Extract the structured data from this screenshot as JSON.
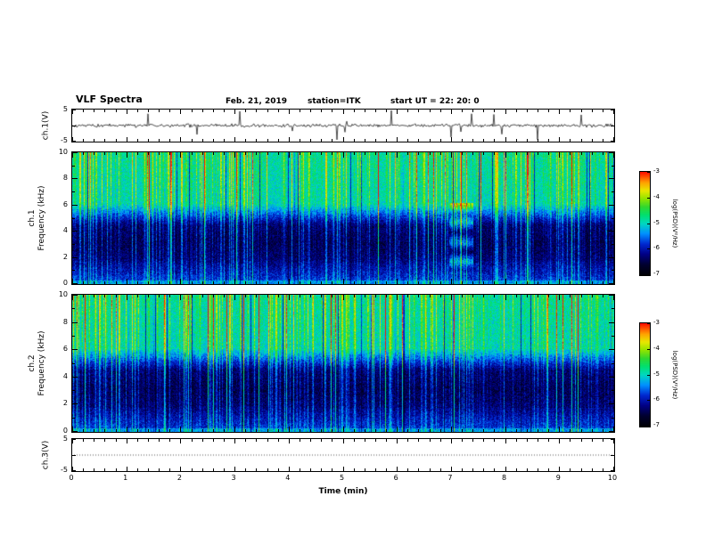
{
  "header": {
    "title": "VLF Spectra",
    "date": "Feb. 21, 2019",
    "station": "station=ITK",
    "start_ut": "start UT  =   22: 20: 0"
  },
  "xaxis": {
    "label": "Time (min)",
    "range": [
      0,
      10
    ],
    "major_ticks": [
      0,
      1,
      2,
      3,
      4,
      5,
      6,
      7,
      8,
      9,
      10
    ],
    "minor_step_min": 0.2
  },
  "panels": {
    "ch1_wave": {
      "ylabel": "ch.1(V)",
      "ylim": [
        -5,
        5
      ],
      "yticks": [
        5,
        -5
      ]
    },
    "ch1_spec": {
      "ylabel_line1": "ch.1",
      "ylabel_line2": "Frequency (kHz)",
      "ylim": [
        0,
        10
      ],
      "yticks": [
        10,
        8,
        6,
        4,
        2,
        0
      ]
    },
    "ch2_spec": {
      "ylabel_line1": "ch.2",
      "ylabel_line2": "Frequency (kHz)",
      "ylim": [
        0,
        10
      ],
      "yticks": [
        10,
        8,
        6,
        4,
        2,
        0
      ]
    },
    "ch3_wave": {
      "ylabel": "ch.3(V)",
      "ylim": [
        -5,
        5
      ],
      "yticks": [
        5,
        -5
      ]
    }
  },
  "colorbar": {
    "label": "log(PSD)(V²/Hz)",
    "ticks": [
      -3,
      -4,
      -5,
      -6,
      -7
    ],
    "range": [
      -7,
      -3
    ],
    "colormap_stops": [
      [
        0.0,
        "#000006"
      ],
      [
        0.1,
        "#000030"
      ],
      [
        0.2,
        "#000085"
      ],
      [
        0.3,
        "#0028d0"
      ],
      [
        0.4,
        "#0090ff"
      ],
      [
        0.5,
        "#00d8c0"
      ],
      [
        0.58,
        "#00e070"
      ],
      [
        0.66,
        "#30d830"
      ],
      [
        0.74,
        "#90e400"
      ],
      [
        0.82,
        "#e8e800"
      ],
      [
        0.9,
        "#ffa000"
      ],
      [
        1.0,
        "#ff1000"
      ]
    ]
  },
  "render": {
    "seed_ch1_spec": 1319,
    "seed_ch2_spec": 2719,
    "seed_ch1_wave": 911,
    "interference_patch": {
      "panel": "ch1",
      "x0_min": 6.95,
      "x1_min": 7.4,
      "f0_khz": 0.8,
      "f1_khz": 6.2
    }
  },
  "chart_data": [
    {
      "type": "line",
      "name": "ch1-voltage-trace",
      "xlabel": "Time (min)",
      "xlim": [
        0,
        10
      ],
      "ylabel": "ch.1(V)",
      "ylim": [
        -5,
        5
      ],
      "yticks": [
        5,
        -5
      ],
      "spikes_min": [
        1.4,
        2.3,
        3.1,
        4.9,
        5.9,
        7.0,
        7.8,
        8.6,
        9.4
      ],
      "description": "Broadband noise centered on 0 V with many impulsive sferic spikes; the largest spikes reach about ±5 V near 1.4, 2.3, 4.9, 5.9, 7.8 and 9.4 min."
    },
    {
      "type": "heatmap",
      "name": "ch1-spectrogram",
      "xlabel": "Time (min)",
      "xlim": [
        0,
        10
      ],
      "ylabel": "Frequency (kHz)",
      "ylim": [
        0,
        10
      ],
      "zlabel": "log(PSD)(V²/Hz)",
      "zlim": [
        -7,
        -3
      ],
      "description": "VLF spectrogram over 10 min: quasi-continuous green/yellow band above ~5.5 kHz (PSD ≈ -4.5 to -4), dark band near -7 between ~2 and 4.5 kHz, blue/cyan speckle below 2 kHz, dense vertical sferic streaks spanning 0-10 kHz every few seconds (some reaching orange/red near the top), scattered black dropout columns, and a horizontally banded interference patch around 7.0-7.4 min between ~1 and 6 kHz."
    },
    {
      "type": "heatmap",
      "name": "ch2-spectrogram",
      "xlabel": "Time (min)",
      "xlim": [
        0,
        10
      ],
      "ylabel": "Frequency (kHz)",
      "ylim": [
        0,
        10
      ],
      "zlabel": "log(PSD)(V²/Hz)",
      "zlim": [
        -7,
        -3
      ],
      "description": "Second-channel VLF spectrogram with the same structure as ch.1: green band above ~5.5 kHz, dark 2-4.5 kHz band, vertical sferic streaks across all frequencies; no banded interference patch."
    },
    {
      "type": "line",
      "name": "ch3-voltage-trace",
      "xlabel": "Time (min)",
      "xlim": [
        0,
        10
      ],
      "ylabel": "ch.3(V)",
      "ylim": [
        -5,
        5
      ],
      "yticks": [
        5,
        -5
      ],
      "description": "Flat dotted trace at 0 V for the full 10 minutes (inactive channel)."
    }
  ]
}
